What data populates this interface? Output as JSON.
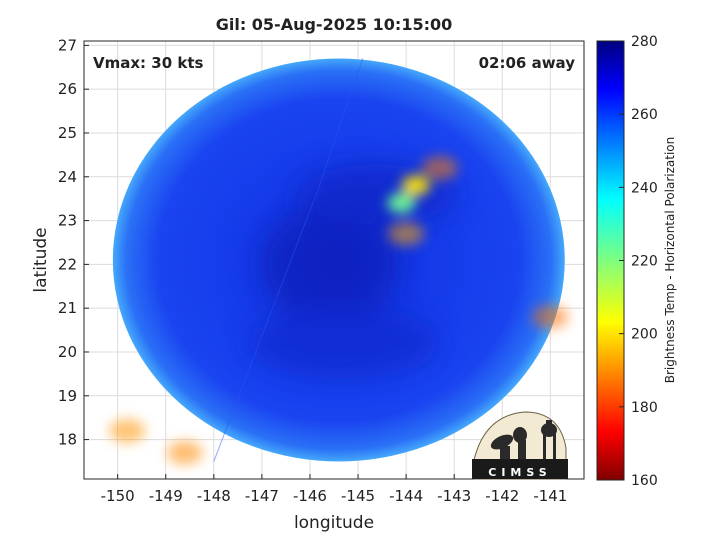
{
  "chart_data": {
    "type": "heatmap",
    "title": "Gil: 05-Aug-2025 10:15:00",
    "xlabel": "longitude",
    "ylabel": "latitude",
    "xlim": [
      -150.7,
      -140.3
    ],
    "ylim": [
      17.1,
      27.1
    ],
    "x_ticks": [
      -150,
      -149,
      -148,
      -147,
      -146,
      -145,
      -144,
      -143,
      -142,
      -141
    ],
    "y_ticks": [
      18,
      19,
      20,
      21,
      22,
      23,
      24,
      25,
      26,
      27
    ],
    "grid": true,
    "annotations": {
      "vmax": "Vmax: 30 kts",
      "time_offset": "02:06 away"
    },
    "colorbar": {
      "label": "Brightness Temp - Horizontal Polarization",
      "range": [
        160,
        280
      ],
      "ticks": [
        160,
        180,
        200,
        220,
        240,
        260,
        280
      ],
      "colormap": "jet"
    },
    "swath": {
      "center": [
        -145.4,
        22.1
      ],
      "radius_lon": 4.7,
      "radius_lat": 4.6,
      "background_value": 262,
      "features": [
        {
          "lon": -144.1,
          "lat": 23.4,
          "value": 218
        },
        {
          "lon": -143.8,
          "lat": 23.8,
          "value": 238
        },
        {
          "lon": -144.0,
          "lat": 22.7,
          "value": 245
        },
        {
          "lon": -143.3,
          "lat": 24.2,
          "value": 250
        },
        {
          "lon": -149.8,
          "lat": 18.2,
          "value": 248
        },
        {
          "lon": -148.6,
          "lat": 17.7,
          "value": 249
        },
        {
          "lon": -141.0,
          "lat": 20.8,
          "value": 252
        }
      ]
    }
  },
  "logo": {
    "text": "CIMSS"
  }
}
